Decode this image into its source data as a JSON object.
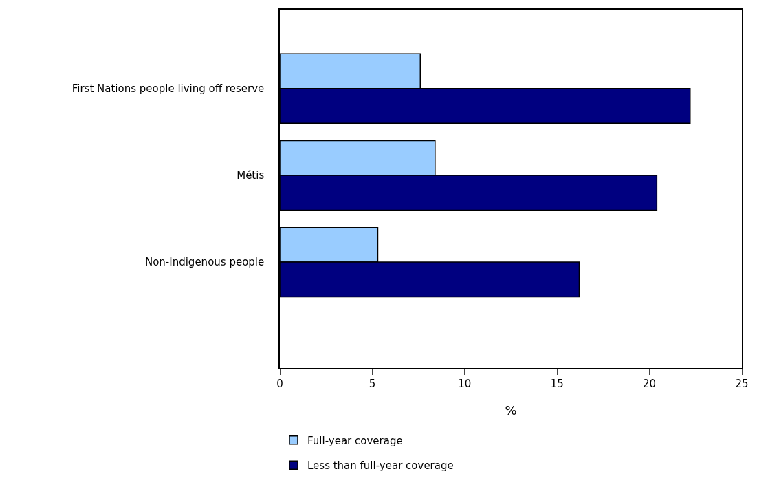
{
  "chart_data": {
    "type": "bar",
    "orientation": "horizontal",
    "xlabel": "%",
    "categories": [
      "First Nations people living off reserve",
      "Métis",
      "Non-Indigenous people"
    ],
    "series": [
      {
        "name": "Full-year coverage",
        "color": "#99ccff",
        "values": [
          7.6,
          8.4,
          5.3
        ]
      },
      {
        "name": "Less than full-year coverage",
        "color": "#000080",
        "values": [
          22.2,
          20.4,
          16.2
        ]
      }
    ],
    "xlim": [
      0,
      25
    ],
    "xticks": [
      0,
      5,
      10,
      15,
      20,
      25
    ],
    "legend": "bottom left"
  }
}
